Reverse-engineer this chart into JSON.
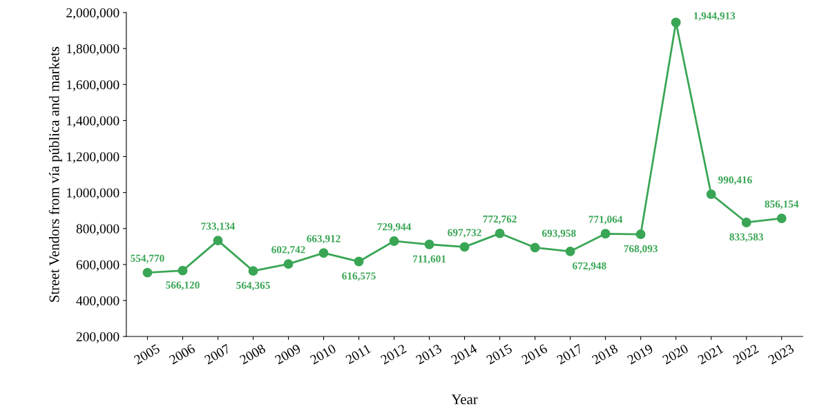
{
  "chart_data": {
    "type": "line",
    "xlabel": "Year",
    "ylabel": "Street Vendors from vía pública and markets",
    "categories": [
      "2005",
      "2006",
      "2007",
      "2008",
      "2009",
      "2010",
      "2011",
      "2012",
      "2013",
      "2014",
      "2015",
      "2016",
      "2017",
      "2018",
      "2019",
      "2020",
      "2021",
      "2022",
      "2023"
    ],
    "series": [
      {
        "color": "#3aa655",
        "values": [
          554770,
          566120,
          733134,
          564365,
          602742,
          663912,
          616575,
          729944,
          711601,
          697732,
          772762,
          693958,
          672948,
          771064,
          768093,
          1944913,
          990416,
          833583,
          856154
        ]
      }
    ],
    "value_labels": [
      "554,770",
      "566,120",
      "733,134",
      "564,365",
      "602,742",
      "663,912",
      "616,575",
      "729,944",
      "711,601",
      "697,732",
      "772,762",
      "693,958",
      "672,948",
      "771,064",
      "768,093",
      "1,944,913",
      "990,416",
      "833,583",
      "856,154"
    ],
    "marker": "circle",
    "line_style": "solid",
    "grid": false,
    "ylim": [
      200000,
      2000000
    ],
    "yticks": [
      {
        "value": 200000,
        "label": "200,000"
      },
      {
        "value": 400000,
        "label": "400,000"
      },
      {
        "value": 600000,
        "label": "600,000"
      },
      {
        "value": 800000,
        "label": "800,000"
      },
      {
        "value": 1000000,
        "label": "1,000,000"
      },
      {
        "value": 1200000,
        "label": "1,200,000"
      },
      {
        "value": 1400000,
        "label": "1,400,000"
      },
      {
        "value": 1600000,
        "label": "1,600,000"
      },
      {
        "value": 1800000,
        "label": "1,800,000"
      },
      {
        "value": 2000000,
        "label": "2,000,000"
      }
    ]
  }
}
